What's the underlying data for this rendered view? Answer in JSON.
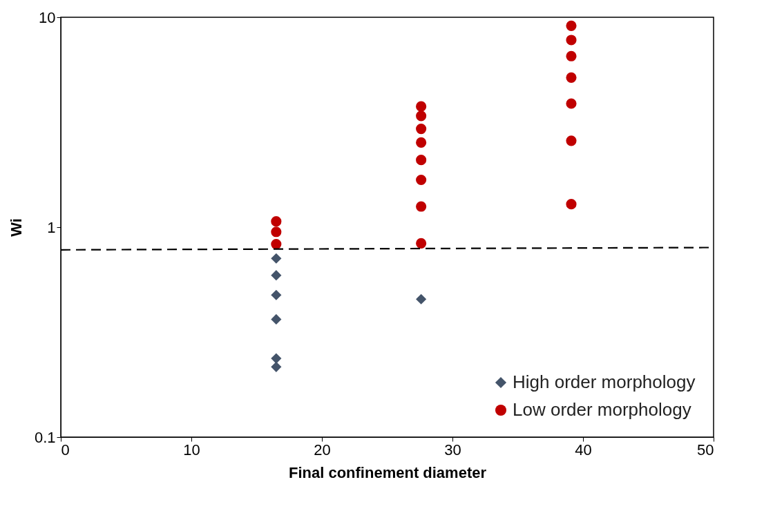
{
  "chart_data": {
    "type": "scatter",
    "xlabel": "Final confinement diameter",
    "ylabel": "Wi",
    "log": "y",
    "grid": false,
    "legend": "bottom right",
    "xlim": [
      0,
      50
    ],
    "xticks": [
      0,
      10,
      20,
      30,
      40,
      50
    ],
    "ylim": [
      0.1,
      10
    ],
    "yticks": [
      0.1,
      1,
      10
    ],
    "series": [
      {
        "name": "High order morphology",
        "color": "#44546a",
        "marker": "diamond",
        "x": [
          16.5,
          16.5,
          16.5,
          16.5,
          16.5,
          16.5,
          27.6
        ],
        "values": [
          0.71,
          0.59,
          0.475,
          0.364,
          0.237,
          0.216,
          0.454
        ]
      },
      {
        "name": "Low order morphology",
        "color": "#c00000",
        "marker": "circle",
        "x": [
          16.5,
          16.5,
          16.5,
          27.6,
          27.6,
          27.6,
          27.6,
          27.6,
          27.6,
          27.6,
          27.6,
          39.1,
          39.1,
          39.1,
          39.1,
          39.1,
          39.1,
          39.1
        ],
        "values": [
          1.065,
          0.95,
          0.83,
          3.76,
          3.39,
          2.94,
          2.53,
          2.09,
          1.68,
          1.255,
          0.838,
          9.11,
          7.79,
          6.53,
          5.16,
          3.88,
          2.58,
          1.287
        ]
      },
      {
        "type": "line",
        "color": "#000000",
        "line_style": "dashed",
        "marker": "none",
        "x": [
          0,
          50
        ],
        "values": [
          0.78,
          0.8
        ]
      }
    ]
  }
}
